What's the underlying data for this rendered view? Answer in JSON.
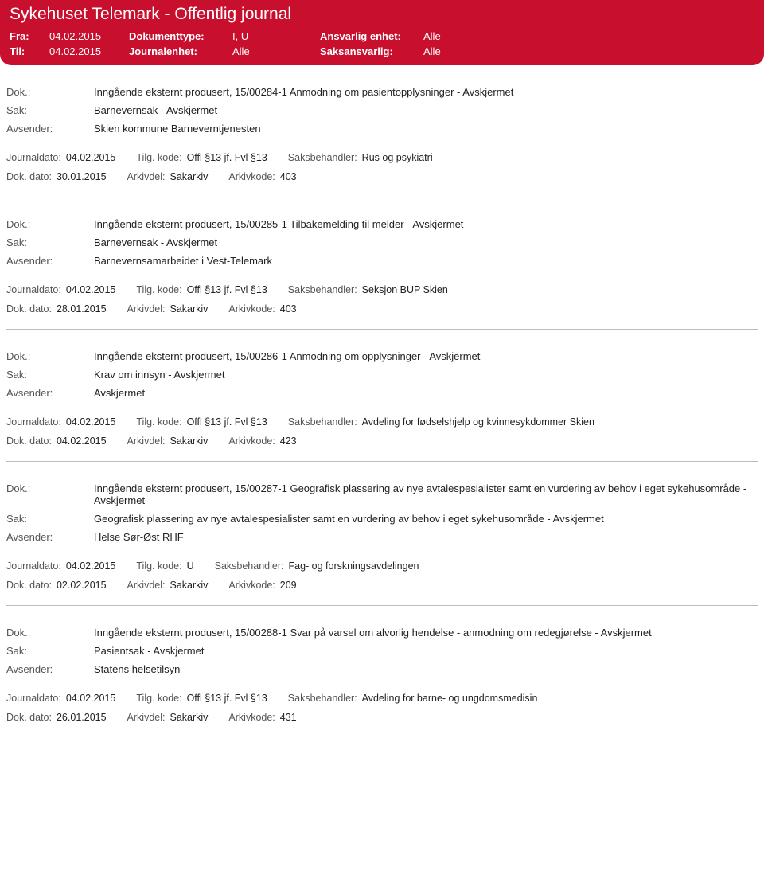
{
  "header": {
    "page_title": "Sykehuset Telemark - Offentlig journal",
    "row1": {
      "label": "Fra:",
      "date": "04.02.2015",
      "typeLabel": "Dokumenttype:",
      "typeVal": "I, U",
      "unitLabel": "Ansvarlig enhet:",
      "unitVal": "Alle"
    },
    "row2": {
      "label": "Til:",
      "date": "04.02.2015",
      "typeLabel": "Journalenhet:",
      "typeVal": "Alle",
      "unitLabel": "Saksansvarlig:",
      "unitVal": "Alle"
    }
  },
  "labels": {
    "dok": "Dok.:",
    "sak": "Sak:",
    "avsender": "Avsender:",
    "journaldato": "Journaldato:",
    "tilgkode": "Tilg. kode:",
    "saksbehandler": "Saksbehandler:",
    "dokdato": "Dok. dato:",
    "arkivdel": "Arkivdel:",
    "arkivkode": "Arkivkode:"
  },
  "records": [
    {
      "dok": "Inngående eksternt produsert, 15/00284-1 Anmodning om pasientopplysninger - Avskjermet",
      "sak": "Barnevernsak - Avskjermet",
      "avsender": "Skien kommune Barneverntjenesten",
      "journaldato": "04.02.2015",
      "tilgkode": "Offl §13 jf. Fvl §13",
      "saksbehandler": "Rus og psykiatri",
      "dokdato": "30.01.2015",
      "arkivdel": "Sakarkiv",
      "arkivkode": "403"
    },
    {
      "dok": "Inngående eksternt produsert, 15/00285-1 Tilbakemelding til melder - Avskjermet",
      "sak": "Barnevernsak - Avskjermet",
      "avsender": "Barnevernsamarbeidet i Vest-Telemark",
      "journaldato": "04.02.2015",
      "tilgkode": "Offl §13 jf. Fvl §13",
      "saksbehandler": "Seksjon BUP Skien",
      "dokdato": "28.01.2015",
      "arkivdel": "Sakarkiv",
      "arkivkode": "403"
    },
    {
      "dok": "Inngående eksternt produsert, 15/00286-1 Anmodning om opplysninger - Avskjermet",
      "sak": "Krav om innsyn - Avskjermet",
      "avsender": "Avskjermet",
      "journaldato": "04.02.2015",
      "tilgkode": "Offl §13 jf. Fvl §13",
      "saksbehandler": "Avdeling for fødselshjelp og kvinnesykdommer Skien",
      "dokdato": "04.02.2015",
      "arkivdel": "Sakarkiv",
      "arkivkode": "423"
    },
    {
      "dok": "Inngående eksternt produsert, 15/00287-1 Geografisk plassering av nye avtalespesialister samt en vurdering av behov i eget sykehusområde - Avskjermet",
      "sak": "Geografisk plassering av nye avtalespesialister samt en vurdering av behov i eget sykehusområde - Avskjermet",
      "avsender": "Helse Sør-Øst RHF",
      "journaldato": "04.02.2015",
      "tilgkode": "U",
      "saksbehandler": "Fag- og forskningsavdelingen",
      "dokdato": "02.02.2015",
      "arkivdel": "Sakarkiv",
      "arkivkode": "209"
    },
    {
      "dok": "Inngående eksternt produsert, 15/00288-1 Svar på varsel om alvorlig hendelse - anmodning om redegjørelse - Avskjermet",
      "sak": "Pasientsak - Avskjermet",
      "avsender": "Statens helsetilsyn",
      "journaldato": "04.02.2015",
      "tilgkode": "Offl §13 jf. Fvl §13",
      "saksbehandler": "Avdeling for barne- og ungdomsmedisin",
      "dokdato": "26.01.2015",
      "arkivdel": "Sakarkiv",
      "arkivkode": "431"
    }
  ]
}
